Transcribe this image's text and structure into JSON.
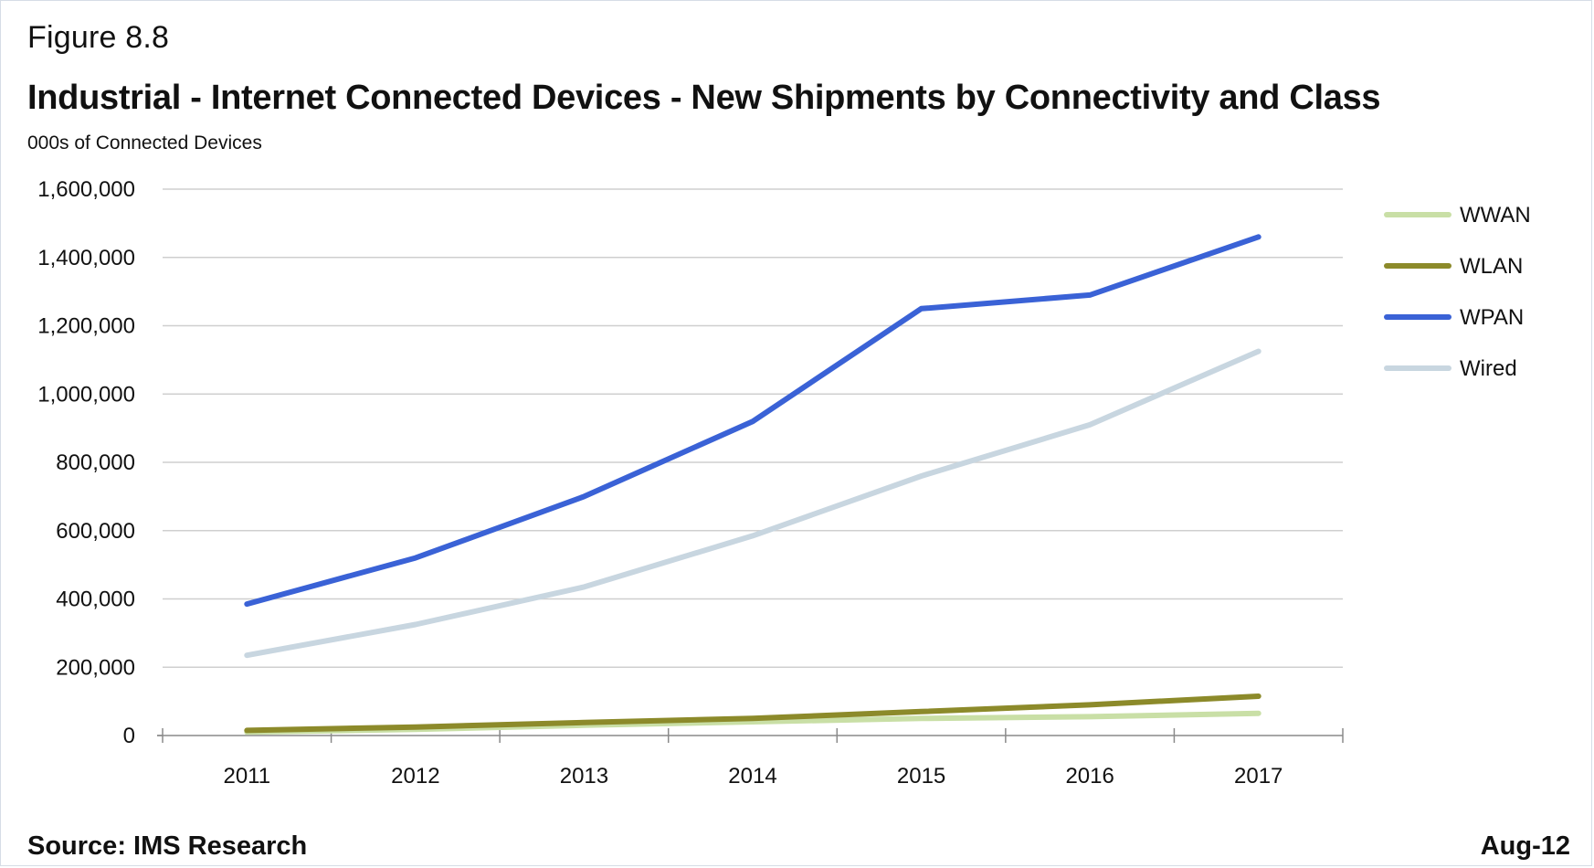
{
  "figure_label": "Figure 8.8",
  "source": "Source: IMS Research",
  "date": "Aug-12",
  "chart_data": {
    "type": "line",
    "title": "Industrial - Internet Connected Devices - New Shipments by Connectivity and Class",
    "subtitle": "000s of Connected Devices",
    "xlabel": "",
    "ylabel": "",
    "x": [
      "2011",
      "2012",
      "2013",
      "2014",
      "2015",
      "2016",
      "2017"
    ],
    "ylim": [
      0,
      1600000
    ],
    "yticks": [
      0,
      200000,
      400000,
      600000,
      800000,
      1000000,
      1200000,
      1400000,
      1600000
    ],
    "ytick_labels": [
      "0",
      "200,000",
      "400,000",
      "600,000",
      "800,000",
      "1,000,000",
      "1,200,000",
      "1,400,000",
      "1,600,000"
    ],
    "grid": true,
    "legend_position": "right",
    "series": [
      {
        "name": "WWAN",
        "color": "#c9dfa6",
        "values": [
          10000,
          18000,
          30000,
          40000,
          50000,
          55000,
          65000
        ]
      },
      {
        "name": "WLAN",
        "color": "#8c8a2a",
        "values": [
          15000,
          25000,
          38000,
          50000,
          70000,
          90000,
          115000
        ]
      },
      {
        "name": "WPAN",
        "color": "#3a62d6",
        "values": [
          385000,
          520000,
          700000,
          920000,
          1250000,
          1290000,
          1460000
        ]
      },
      {
        "name": "Wired",
        "color": "#c8d6e0",
        "values": [
          235000,
          325000,
          435000,
          585000,
          760000,
          910000,
          1125000
        ]
      }
    ]
  }
}
